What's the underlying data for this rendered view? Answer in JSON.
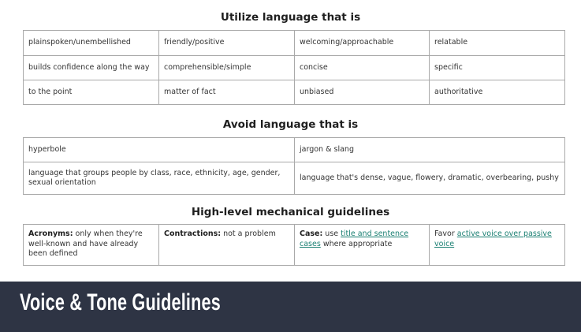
{
  "sections": {
    "utilize": {
      "title": "Utilize language that is",
      "rows": [
        [
          "plainspoken/unembellished",
          "friendly/positive",
          "welcoming/approachable",
          "relatable"
        ],
        [
          "builds confidence along the way",
          "comprehensible/simple",
          "concise",
          "specific"
        ],
        [
          "to the point",
          "matter of fact",
          "unbiased",
          "authoritative"
        ]
      ]
    },
    "avoid": {
      "title": "Avoid language that is",
      "rows": [
        [
          "hyperbole",
          "jargon & slang"
        ],
        [
          "language that groups people by class, race, ethnicity, age, gender, sexual orientation",
          "language that's dense, vague, flowery, dramatic, overbearing, pushy"
        ]
      ]
    },
    "mechanical": {
      "title": "High-level mechanical guidelines",
      "acronyms": {
        "label": "Acronyms:",
        "text": " only when they're well-known and have already been defined"
      },
      "contractions": {
        "label": "Contractions:",
        "text": " not a problem"
      },
      "case": {
        "label": "Case:",
        "pre": " use ",
        "link": "title and sentence cases",
        "post": " where appropriate"
      },
      "voice": {
        "pre": "Favor ",
        "link": "active voice over passive voice"
      }
    }
  },
  "banner": {
    "title": "Voice & Tone Guidelines"
  },
  "colors": {
    "banner_bg": "#2e3444",
    "link": "#1a7f72",
    "border": "#a9a9a9"
  }
}
